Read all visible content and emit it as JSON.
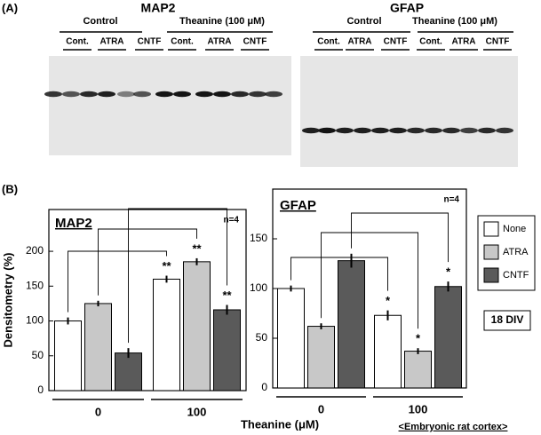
{
  "panel_a": {
    "label": "(A)",
    "blots": [
      {
        "title": "MAP2",
        "groups": [
          {
            "name": "Control",
            "lanes": [
              "Cont.",
              "ATRA",
              "CNTF"
            ]
          },
          {
            "name": "Theanine (100 μM)",
            "lanes": [
              "Cont.",
              "ATRA",
              "CNTF"
            ]
          }
        ]
      },
      {
        "title": "GFAP",
        "groups": [
          {
            "name": "Control",
            "lanes": [
              "Cont.",
              "ATRA",
              "CNTF"
            ]
          },
          {
            "name": "Theanine (100 μM)",
            "lanes": [
              "Cont.",
              "ATRA",
              "CNTF"
            ]
          }
        ]
      }
    ]
  },
  "panel_b": {
    "label": "(B)",
    "y_label": "Densitometry (%)",
    "x_label": "Theanine (μM)",
    "note": "18 DIV",
    "footnote": "<Embryonic rat cortex>"
  },
  "chart_data": [
    {
      "type": "bar",
      "title": "MAP2",
      "annotation": "n=4",
      "categories": [
        "0",
        "100"
      ],
      "ylim": [
        0,
        260
      ],
      "yticks": [
        0,
        50,
        100,
        150,
        200
      ],
      "series": [
        {
          "name": "None",
          "color": "#ffffff",
          "values": [
            100,
            160
          ],
          "errors": [
            5,
            5
          ],
          "markers": [
            null,
            "**"
          ]
        },
        {
          "name": "ATRA",
          "color": "#c8c8c8",
          "values": [
            125,
            185
          ],
          "errors": [
            4,
            5
          ],
          "markers": [
            null,
            "**"
          ]
        },
        {
          "name": "CNTF",
          "color": "#5a5a5a",
          "values": [
            54,
            116
          ],
          "errors": [
            7,
            7
          ],
          "markers": [
            null,
            "**"
          ]
        }
      ]
    },
    {
      "type": "bar",
      "title": "GFAP",
      "annotation": "n=4",
      "categories": [
        "0",
        "100"
      ],
      "ylim": [
        0,
        200
      ],
      "yticks": [
        0,
        50,
        100,
        150
      ],
      "series": [
        {
          "color": "#ffffff",
          "values": [
            100,
            73
          ],
          "errors": [
            3,
            5
          ],
          "markers": [
            null,
            "*"
          ]
        },
        {
          "color": "#c8c8c8",
          "values": [
            62,
            37
          ],
          "errors": [
            3,
            3
          ],
          "markers": [
            null,
            "*"
          ]
        },
        {
          "color": "#5a5a5a",
          "values": [
            128,
            102
          ],
          "errors": [
            7,
            5
          ],
          "markers": [
            null,
            "*"
          ]
        }
      ]
    }
  ]
}
